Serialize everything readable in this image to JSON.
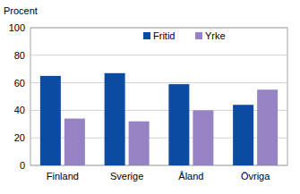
{
  "chart_data": {
    "type": "bar",
    "y_label": "Procent",
    "categories": [
      "Finland",
      "Sverige",
      "Åland",
      "Övriga"
    ],
    "series": [
      {
        "name": "Fritid",
        "color": "#0b4ca2",
        "values": [
          65,
          67,
          59,
          44
        ]
      },
      {
        "name": "Yrke",
        "color": "#9683c3",
        "values": [
          34,
          32,
          40,
          55
        ]
      }
    ],
    "ylim": [
      0,
      100
    ],
    "yticks": [
      0,
      20,
      40,
      60,
      80,
      100
    ],
    "grid": true,
    "legend": "top"
  }
}
